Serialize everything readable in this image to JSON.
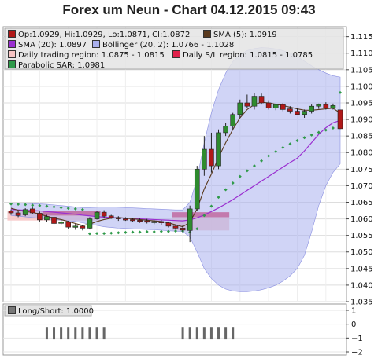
{
  "title": "Forex um Neun - Chart 04.12.2015 09:43",
  "colors": {
    "up": "#2e8b2e",
    "down": "#b01818",
    "sma5": "#5a3a1e",
    "sma20": "#9a2fd0",
    "bollinger": "#aab0ee",
    "trading_region": "#f7c4c4",
    "sl_region": "#e0214b",
    "sar": "#2f9a4a"
  },
  "legend": {
    "ohlc": "Op:1.0929, Hi:1.0929, Lo:1.0871, Cl:1.0872",
    "sma5": "SMA (5): 1.0919",
    "sma20": "SMA (20): 1.0897",
    "bollinger": "Bollinger (20, 2): 1.0766 - 1.1028",
    "trading_region": "Daily trading region: 1.0875 - 1.0815",
    "sl_region": "Daily S/L region: 1.0815 - 1.0785",
    "sar": "Parabolic SAR: 1.0981",
    "longshort": "Long/Short: 1.0000"
  },
  "chart_data": [
    {
      "type": "candlestick",
      "title": "Forex um Neun - Chart 04.12.2015 09:43",
      "ylim": [
        1.035,
        1.118
      ],
      "yticks": [
        "1.035",
        "1.040",
        "1.045",
        "1.050",
        "1.055",
        "1.060",
        "1.065",
        "1.070",
        "1.075",
        "1.080",
        "1.085",
        "1.090",
        "1.095",
        "1.100",
        "1.105",
        "1.110",
        "1.115"
      ],
      "candles": [
        [
          1.0623,
          1.0628,
          1.0612,
          1.0618
        ],
        [
          1.0618,
          1.0624,
          1.0605,
          1.061
        ],
        [
          1.0612,
          1.0632,
          1.0608,
          1.0628
        ],
        [
          1.063,
          1.0636,
          1.0614,
          1.0618
        ],
        [
          1.0617,
          1.0622,
          1.0592,
          1.0597
        ],
        [
          1.0597,
          1.0612,
          1.059,
          1.0607
        ],
        [
          1.0605,
          1.0608,
          1.0582,
          1.0586
        ],
        [
          1.0587,
          1.0598,
          1.058,
          1.059
        ],
        [
          1.059,
          1.0594,
          1.057,
          1.0575
        ],
        [
          1.0576,
          1.0585,
          1.0567,
          1.0578
        ],
        [
          1.0578,
          1.0582,
          1.0565,
          1.0572
        ],
        [
          1.0572,
          1.0605,
          1.0568,
          1.06
        ],
        [
          1.06,
          1.0625,
          1.0598,
          1.062
        ],
        [
          1.062,
          1.0626,
          1.0604,
          1.0608
        ],
        [
          1.0609,
          1.0612,
          1.06,
          1.0604
        ],
        [
          1.0604,
          1.0608,
          1.0594,
          1.06
        ],
        [
          1.06,
          1.0605,
          1.0594,
          1.0598
        ],
        [
          1.0598,
          1.0603,
          1.0592,
          1.0596
        ],
        [
          1.0596,
          1.0601,
          1.0588,
          1.0594
        ],
        [
          1.0594,
          1.06,
          1.0586,
          1.059
        ],
        [
          1.059,
          1.0596,
          1.0584,
          1.0592
        ],
        [
          1.0592,
          1.0596,
          1.0582,
          1.0588
        ],
        [
          1.0588,
          1.0592,
          1.0574,
          1.0578
        ],
        [
          1.0578,
          1.0582,
          1.0568,
          1.0572
        ],
        [
          1.0572,
          1.058,
          1.056,
          1.0566
        ],
        [
          1.0565,
          1.064,
          1.053,
          1.063
        ],
        [
          1.063,
          1.076,
          1.0625,
          1.075
        ],
        [
          1.075,
          1.085,
          1.073,
          1.081
        ],
        [
          1.081,
          1.086,
          1.074,
          1.076
        ],
        [
          1.076,
          1.087,
          1.075,
          1.086
        ],
        [
          1.086,
          1.089,
          1.085,
          1.088
        ],
        [
          1.088,
          1.092,
          1.087,
          1.0915
        ],
        [
          1.0915,
          1.096,
          1.0905,
          1.095
        ],
        [
          1.095,
          1.0975,
          1.0935,
          1.094
        ],
        [
          1.094,
          1.098,
          1.093,
          1.097
        ],
        [
          1.097,
          1.0978,
          1.0945,
          1.095
        ],
        [
          1.095,
          1.0958,
          1.093,
          1.0935
        ],
        [
          1.0935,
          1.0948,
          1.0928,
          1.0945
        ],
        [
          1.0945,
          1.095,
          1.0925,
          1.093
        ],
        [
          1.0932,
          1.094,
          1.0918,
          1.0925
        ],
        [
          1.0925,
          1.0935,
          1.0912,
          1.0915
        ],
        [
          1.0915,
          1.093,
          1.0905,
          1.0925
        ],
        [
          1.0925,
          1.0945,
          1.0918,
          1.094
        ],
        [
          1.094,
          1.0948,
          1.0932,
          1.0945
        ],
        [
          1.0945,
          1.0952,
          1.093,
          1.0935
        ],
        [
          1.0935,
          1.0948,
          1.093,
          1.0942
        ],
        [
          1.0929,
          1.0929,
          1.0871,
          1.0872
        ]
      ],
      "sma5": [
        1.0632,
        1.0626,
        1.0622,
        1.062,
        1.0614,
        1.0608,
        1.0602,
        1.0598,
        1.0592,
        1.0586,
        1.058,
        1.0584,
        1.0592,
        1.0598,
        1.0602,
        1.0604,
        1.0602,
        1.06,
        1.0598,
        1.0596,
        1.0594,
        1.0592,
        1.0588,
        1.0582,
        1.0576,
        1.059,
        1.063,
        1.069,
        1.0735,
        1.0785,
        1.083,
        1.087,
        1.0905,
        1.093,
        1.0945,
        1.0952,
        1.095,
        1.0946,
        1.0942,
        1.0937,
        1.0932,
        1.0928,
        1.0928,
        1.093,
        1.0932,
        1.0934,
        1.0919
      ],
      "sma20": [
        1.0628,
        1.0627,
        1.0626,
        1.0625,
        1.0624,
        1.0622,
        1.062,
        1.0618,
        1.0616,
        1.0614,
        1.0611,
        1.0609,
        1.0607,
        1.0605,
        1.0604,
        1.0603,
        1.0602,
        1.0601,
        1.06,
        1.0599,
        1.0598,
        1.0597,
        1.0596,
        1.0595,
        1.0594,
        1.0597,
        1.0603,
        1.0612,
        1.0622,
        1.0633,
        1.0645,
        1.0658,
        1.0672,
        1.0686,
        1.07,
        1.0714,
        1.0728,
        1.0742,
        1.0756,
        1.077,
        1.0783,
        1.0805,
        1.083,
        1.0855,
        1.0875,
        1.089,
        1.0897
      ],
      "bollinger_upper": [
        1.0648,
        1.0648,
        1.0647,
        1.0646,
        1.0645,
        1.0644,
        1.0642,
        1.064,
        1.0638,
        1.0636,
        1.0634,
        1.0634,
        1.0635,
        1.0636,
        1.0636,
        1.0635,
        1.0634,
        1.0633,
        1.0632,
        1.0631,
        1.063,
        1.0629,
        1.0628,
        1.0627,
        1.0627,
        1.065,
        1.072,
        1.083,
        1.092,
        1.099,
        1.104,
        1.1075,
        1.1095,
        1.1108,
        1.1114,
        1.1117,
        1.1116,
        1.1113,
        1.1108,
        1.11,
        1.109,
        1.1076,
        1.1062,
        1.105,
        1.104,
        1.1032,
        1.1028
      ],
      "bollinger_lower": [
        1.061,
        1.0608,
        1.0606,
        1.0604,
        1.0602,
        1.06,
        1.0598,
        1.0596,
        1.0594,
        1.0592,
        1.0588,
        1.0584,
        1.058,
        1.0576,
        1.0574,
        1.0572,
        1.0571,
        1.057,
        1.0569,
        1.0568,
        1.0567,
        1.0566,
        1.0564,
        1.0563,
        1.0562,
        1.0545,
        1.05,
        1.045,
        1.042,
        1.04,
        1.0388,
        1.0382,
        1.038,
        1.038,
        1.0382,
        1.0386,
        1.0392,
        1.04,
        1.0412,
        1.0428,
        1.045,
        1.049,
        1.056,
        1.064,
        1.07,
        1.074,
        1.0766
      ],
      "sar": [
        1.0645,
        1.0644,
        1.0643,
        1.0641,
        1.064,
        1.0638,
        1.0636,
        1.0634,
        1.0632,
        1.063,
        1.0628,
        1.0555,
        1.0556,
        1.0556,
        1.0557,
        1.0558,
        1.0559,
        1.056,
        1.056,
        1.0561,
        1.0561,
        1.0562,
        1.0562,
        1.0563,
        1.0563,
        1.056,
        1.057,
        1.061,
        1.0638,
        1.0665,
        1.0688,
        1.0708,
        1.0728,
        1.0745,
        1.076,
        1.0775,
        1.079,
        1.0803,
        1.0815,
        1.0826,
        1.0836,
        1.0845,
        1.0853,
        1.0861,
        1.0868,
        1.0874,
        1.0981
      ],
      "trading_regions": [
        [
          0,
          12,
          1.0595,
          1.0625
        ],
        [
          23,
          30,
          1.0565,
          1.0605
        ]
      ],
      "sl_regions": [
        [
          5,
          12,
          1.061,
          1.0625
        ],
        [
          23,
          30,
          1.0605,
          1.062
        ]
      ]
    },
    {
      "type": "bar",
      "name": "Long/Short",
      "ylim": [
        -2,
        1
      ],
      "yticks": [
        "1",
        "0",
        "−1",
        "−2"
      ],
      "groups": [
        [
          5,
          13
        ],
        [
          24,
          31
        ]
      ]
    }
  ]
}
